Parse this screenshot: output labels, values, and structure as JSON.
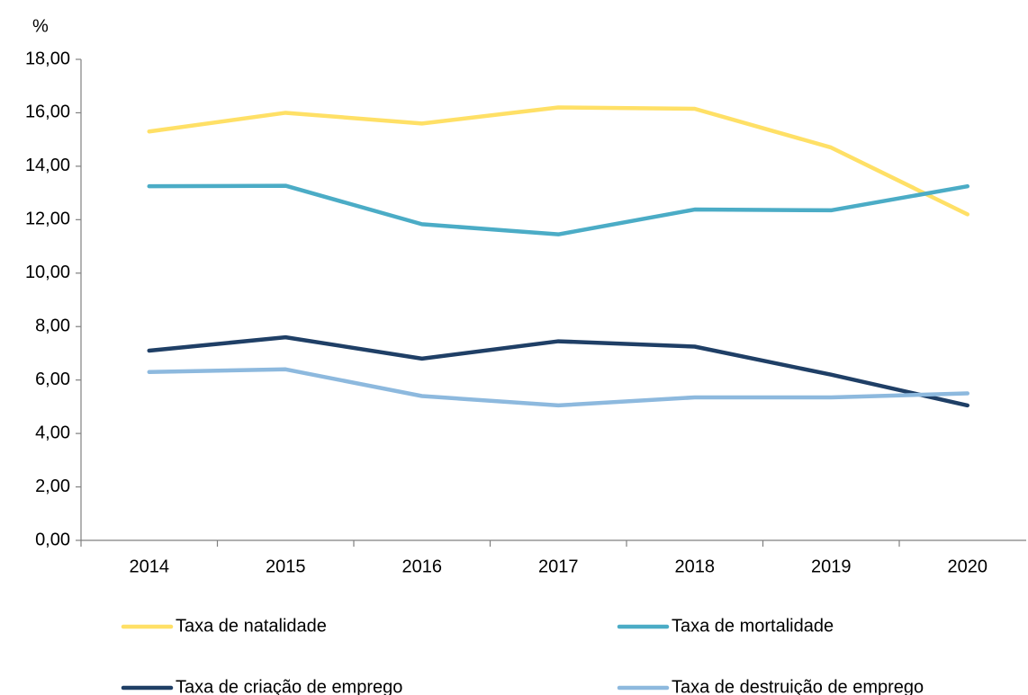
{
  "chart_data": {
    "type": "line",
    "y_label": "%",
    "categories": [
      "2014",
      "2015",
      "2016",
      "2017",
      "2018",
      "2019",
      "2020"
    ],
    "series": [
      {
        "name": "Taxa de natalidade",
        "color": "#ffe066",
        "values": [
          15.3,
          16.0,
          15.6,
          16.2,
          16.15,
          14.7,
          12.2
        ]
      },
      {
        "name": "Taxa de mortalidade",
        "color": "#4bacc6",
        "values": [
          13.25,
          13.27,
          11.83,
          11.45,
          12.38,
          12.35,
          13.25
        ]
      },
      {
        "name": "Taxa de criação de emprego",
        "color": "#1f3f66",
        "values": [
          7.1,
          7.6,
          6.8,
          7.45,
          7.25,
          6.2,
          5.05
        ]
      },
      {
        "name": "Taxa de destruição de emprego",
        "color": "#8db9de",
        "values": [
          6.3,
          6.4,
          5.4,
          5.05,
          5.35,
          5.35,
          5.5
        ]
      }
    ],
    "ylim": [
      0,
      18
    ],
    "yticks": [
      {
        "value": 0,
        "label": "0,00"
      },
      {
        "value": 2,
        "label": "2,00"
      },
      {
        "value": 4,
        "label": "4,00"
      },
      {
        "value": 6,
        "label": "6,00"
      },
      {
        "value": 8,
        "label": "8,00"
      },
      {
        "value": 10,
        "label": "10,00"
      },
      {
        "value": 12,
        "label": "12,00"
      },
      {
        "value": 14,
        "label": "14,00"
      },
      {
        "value": 16,
        "label": "16,00"
      },
      {
        "value": 18,
        "label": "18,00"
      }
    ]
  }
}
